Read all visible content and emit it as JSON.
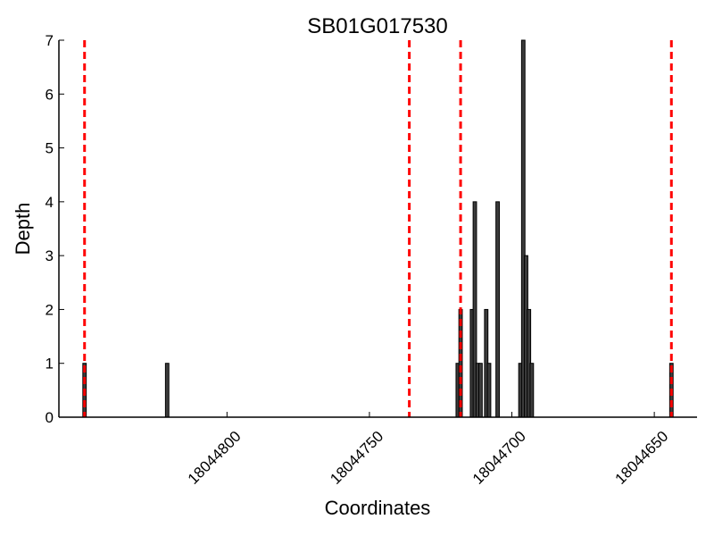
{
  "chart_data": {
    "type": "bar",
    "title": "SB01G017530",
    "xlabel": "Coordinates",
    "ylabel": "Depth",
    "x_reversed": true,
    "xlim": [
      18044859,
      18044635
    ],
    "ylim": [
      0,
      7
    ],
    "xticks": [
      18044800,
      18044750,
      18044700,
      18044650
    ],
    "yticks": [
      0,
      1,
      2,
      3,
      4,
      5,
      6,
      7
    ],
    "grid": false,
    "bar_color": "#3c3c3c",
    "bars": [
      {
        "x": 18044850,
        "value": 1
      },
      {
        "x": 18044821,
        "value": 1
      },
      {
        "x": 18044719,
        "value": 1
      },
      {
        "x": 18044718,
        "value": 2
      },
      {
        "x": 18044714,
        "value": 2
      },
      {
        "x": 18044713,
        "value": 4
      },
      {
        "x": 18044712,
        "value": 1
      },
      {
        "x": 18044711,
        "value": 1
      },
      {
        "x": 18044709,
        "value": 2
      },
      {
        "x": 18044708,
        "value": 1
      },
      {
        "x": 18044705,
        "value": 4
      },
      {
        "x": 18044697,
        "value": 1
      },
      {
        "x": 18044696,
        "value": 7
      },
      {
        "x": 18044695,
        "value": 3
      },
      {
        "x": 18044694,
        "value": 2
      },
      {
        "x": 18044693,
        "value": 1
      },
      {
        "x": 18044644,
        "value": 1
      }
    ],
    "reference_lines": {
      "color": "#ff0000",
      "style": "dashed",
      "x": [
        18044850,
        18044736,
        18044718,
        18044644
      ]
    }
  }
}
